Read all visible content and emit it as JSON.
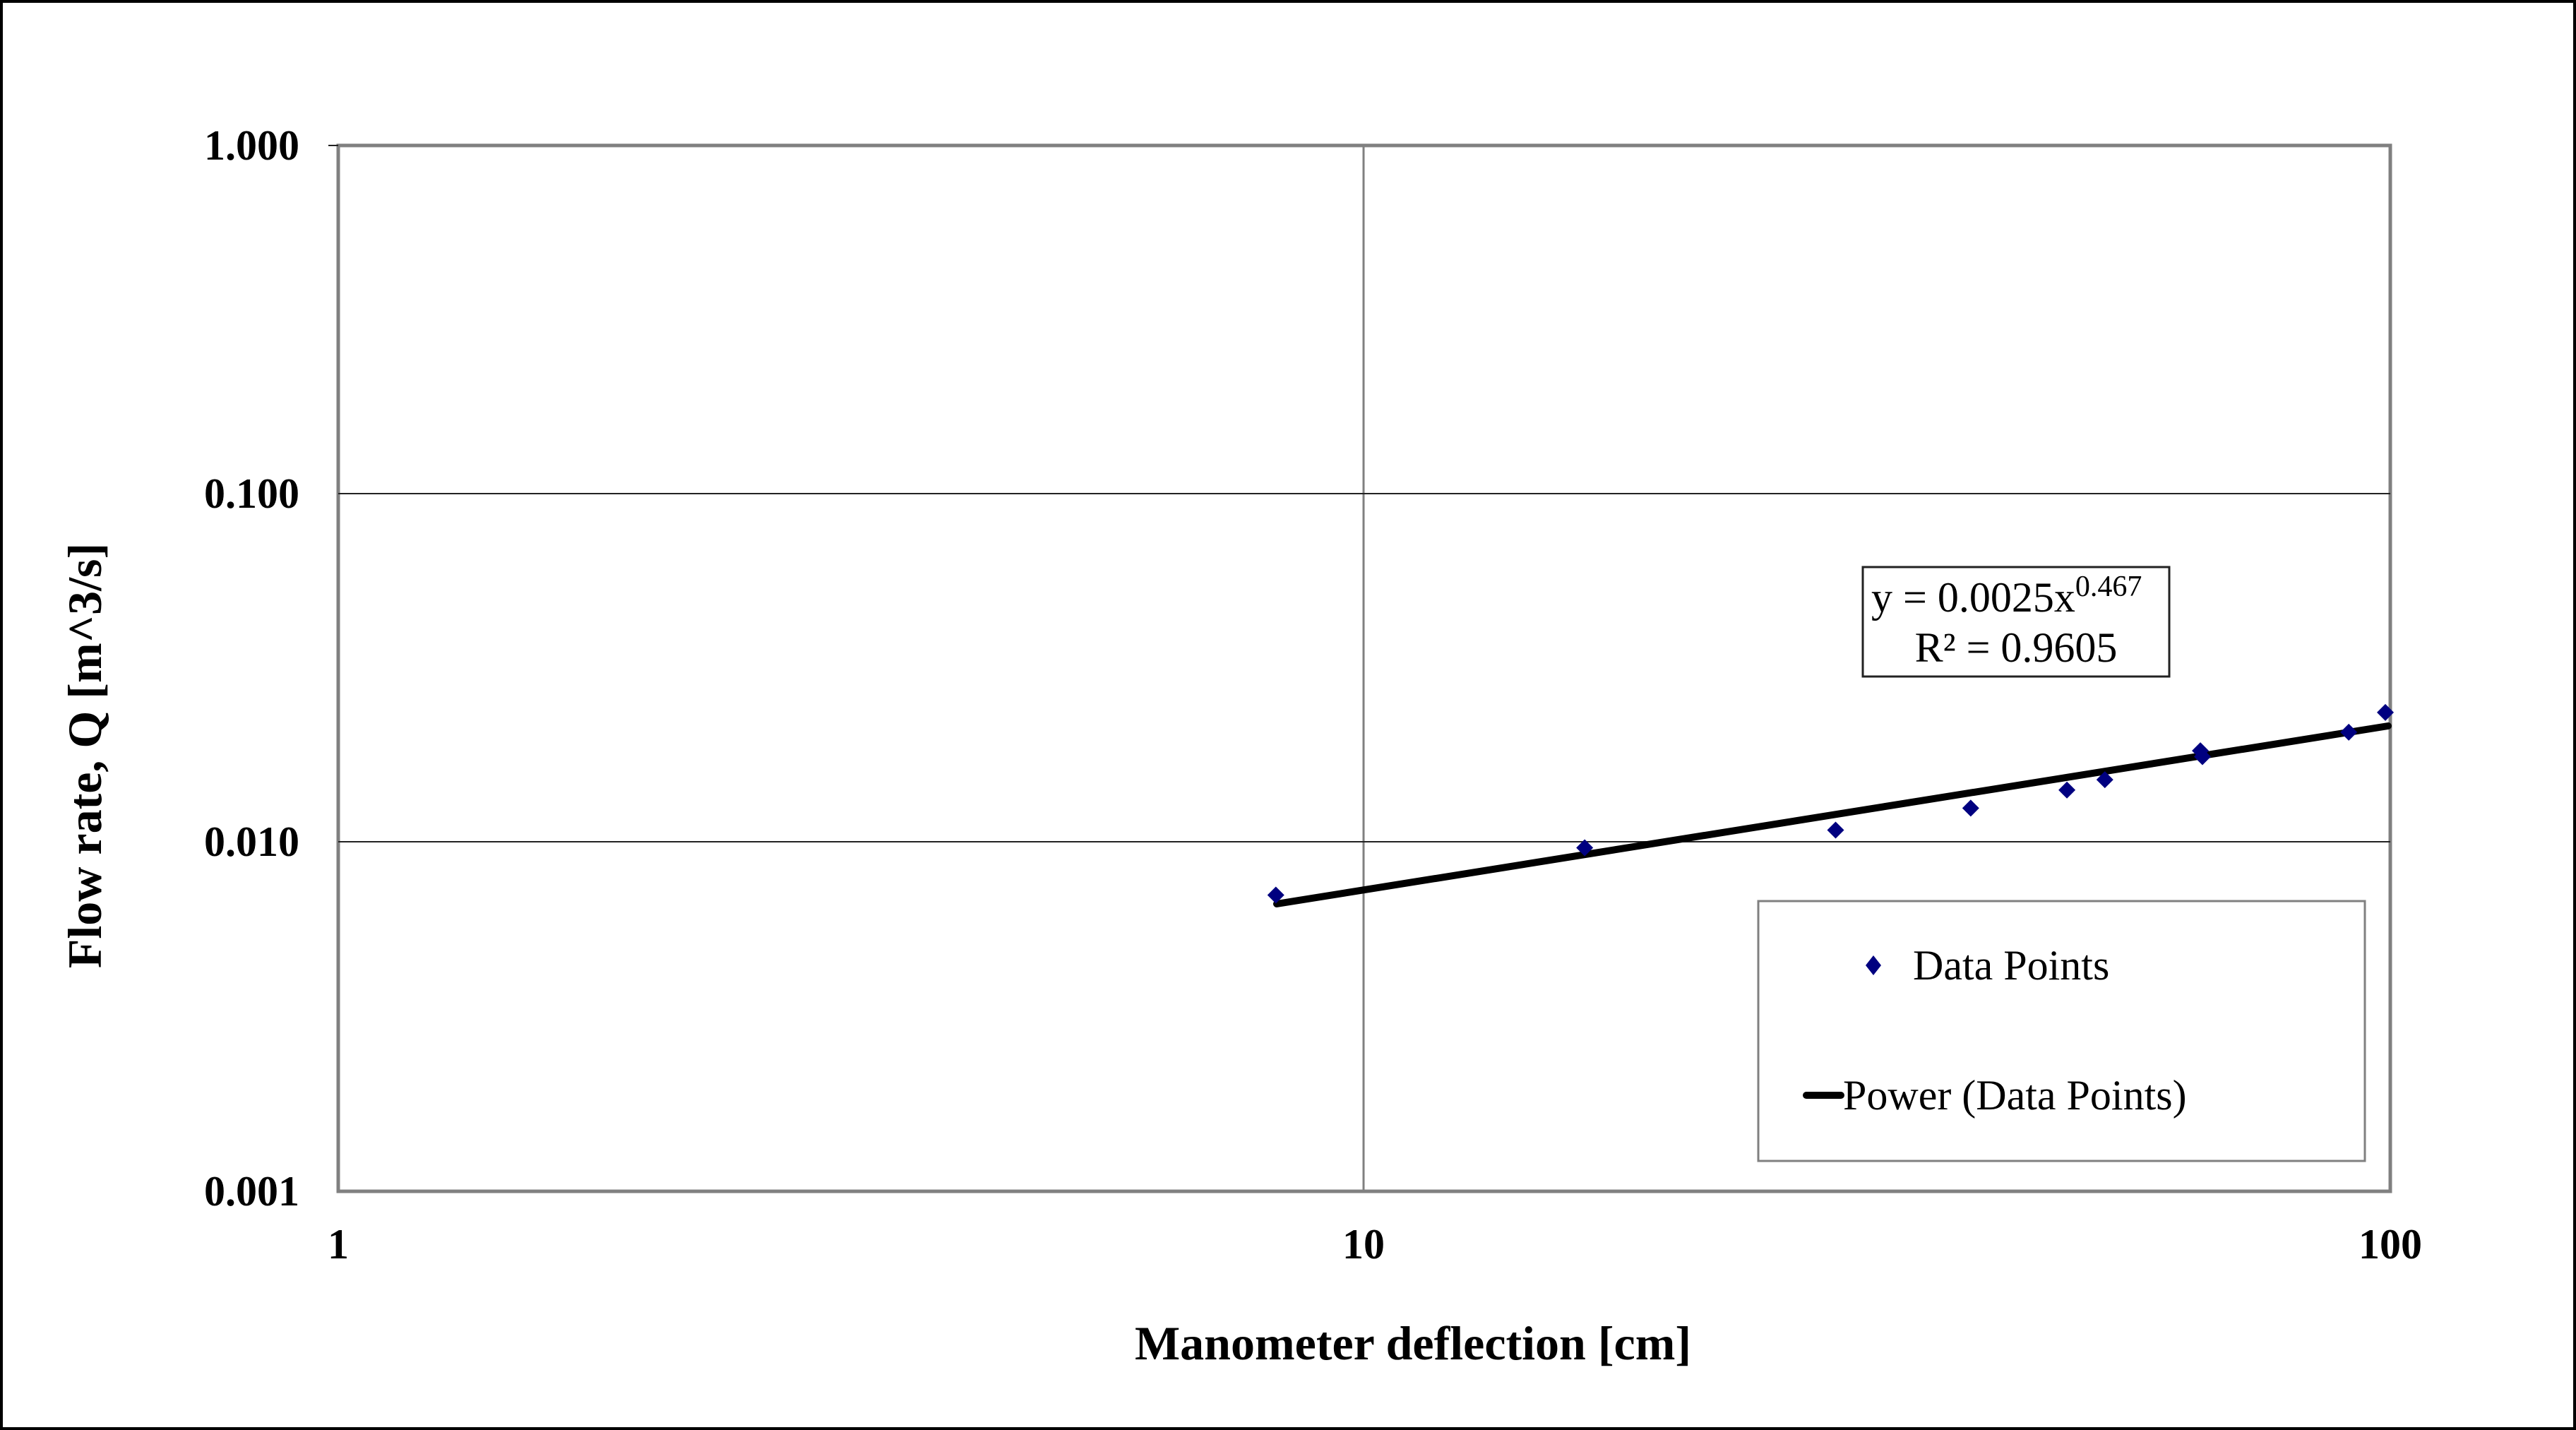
{
  "chart_data": {
    "type": "scatter",
    "title": "",
    "xlabel": "Manometer deflection [cm]",
    "ylabel": "Flow rate, Q [m^3/s]",
    "x_scale": "log",
    "y_scale": "log",
    "xlim": [
      1,
      100
    ],
    "ylim": [
      0.001,
      1
    ],
    "x_ticks": [
      "1",
      "10",
      "100"
    ],
    "y_ticks": [
      "0.001",
      "0.010",
      "0.100",
      "1.000"
    ],
    "grid": true,
    "legend_position": "lower right",
    "series": [
      {
        "name": "Data Points",
        "type": "scatter",
        "marker": "diamond",
        "color": "#000080",
        "x": [
          8.2,
          16.4,
          28.8,
          39.0,
          48.4,
          52.7,
          65.3,
          65.6,
          91.1,
          98.9
        ],
        "y": [
          0.0071,
          0.0097,
          0.0109,
          0.0126,
          0.0142,
          0.0152,
          0.0184,
          0.0177,
          0.0208,
          0.0237
        ]
      },
      {
        "name": "Power (Data Points)",
        "type": "line",
        "color": "#000000",
        "equation": {
          "a": 0.0025,
          "b": 0.467
        },
        "x_range": [
          8.2,
          100
        ]
      }
    ],
    "annotations": [
      {
        "text": "y = 0.0025x^0.467"
      },
      {
        "text": "R² = 0.9605"
      }
    ]
  },
  "labels": {
    "xlabel": "Manometer deflection [cm]",
    "ylabel": "Flow rate, Q [m^3/s]",
    "x_ticks": [
      "1",
      "10",
      "100"
    ],
    "y_ticks": [
      "1.000",
      "0.100",
      "0.010",
      "0.001"
    ],
    "equation_base": "y = 0.0025x",
    "equation_exp": "0.467",
    "r_squared": "R² = 0.9605",
    "legend_points": "Data Points",
    "legend_line": "Power (Data Points)"
  },
  "colors": {
    "marker": "#000080",
    "trendline": "#000000",
    "grid": "#808080",
    "plot_border": "#808080"
  }
}
